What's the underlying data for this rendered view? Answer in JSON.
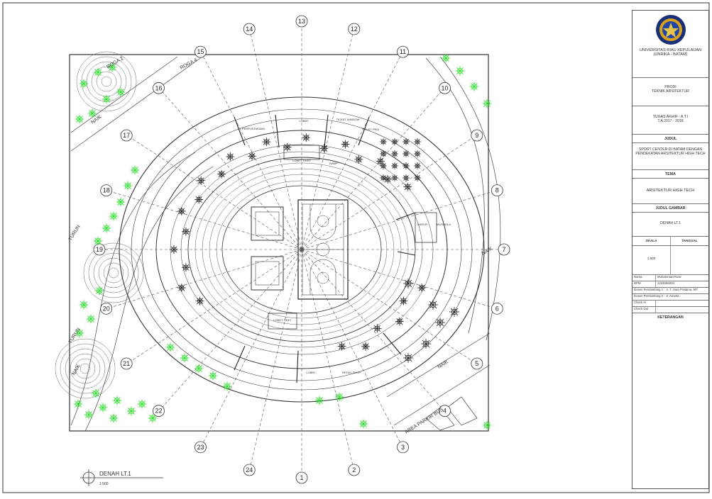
{
  "drawing": {
    "plan_title": "DENAH LT.1",
    "plan_scale": "1:500",
    "grid_labels": [
      "1",
      "2",
      "3",
      "4",
      "5",
      "6",
      "7",
      "8",
      "9",
      "10",
      "11",
      "12",
      "13",
      "14",
      "15",
      "16",
      "17",
      "18",
      "19",
      "20",
      "21",
      "22",
      "23",
      "24"
    ],
    "road_labels": {
      "road2": "ROGA 2",
      "road4": "ROGA 4",
      "turun_top": "TURUN",
      "turun_bottom": "TURUN",
      "naik_right": "NAIK",
      "naik_bottom": "NAIK",
      "naik_top_left": "NAIK",
      "naik_bottom_left": "NAIK",
      "bus_parking": "AREA PARKIR BUS"
    },
    "room_labels": {
      "perpustakaan": "PERPUSTAKAAN",
      "lobby_top": "LOBBY",
      "ticket_a": "TICKET WINDOW",
      "ticket_b": "TOILET PRIA",
      "loket_top": "LOKET TIKET",
      "ramp_top": "RAMP",
      "dapur": "DAPUR",
      "mushola": "MUSHOLA",
      "loket_bottom": "LOKET TIKET",
      "retail_bottom": "RETAIL SHOP",
      "lobby_bottom": "LOBBY"
    },
    "colors": {
      "line": "#333333",
      "tree_green": "#22dd22",
      "grid_line": "#555555"
    }
  },
  "titleblock": {
    "university": "UNIVERSITAS RIAU KEPULAUAN",
    "university_short": "(UNRIKA - BATAM)",
    "prodi_label": "PRODI",
    "prodi_value": "TEKNIK ARSITEKTUR",
    "task_line1": "TUGAS AKHIR - A.T.I",
    "task_line2": "T.A 2017 - 2018",
    "judul_label": "JUDUL",
    "judul_value": "SPORT CENTER DI BATAM DENGAN PENDEKATAN ARSITEKTUR HIGH TECH",
    "tema_label": "TEMA",
    "tema_value": "ARSITEKTUR HIGH TECH",
    "judul_gambar_label": "JUDUL GAMBAR",
    "judul_gambar_value": "DENAH LT.1",
    "skala_label": "SKALA",
    "skala_value": "1:500",
    "tanggal_label": "TANGGAL",
    "nama_key": "Nama",
    "nama_val": "Muhammad Rizal",
    "npm_key": "NPM",
    "npm_val": "1234556003",
    "dosen1_key": "Dosen Pembimbing 1",
    "dosen1_val": ": Ir. T. Sara Pratama, MT",
    "dosen2_key": "Dosen Pembimbing 2",
    "dosen2_val": ": Ir. Ananta",
    "check_in_key": "Check In",
    "check_in_val": ":",
    "check_out_key": "Check Out",
    "check_out_val": ":",
    "keterangan": "KETERANGAN"
  }
}
